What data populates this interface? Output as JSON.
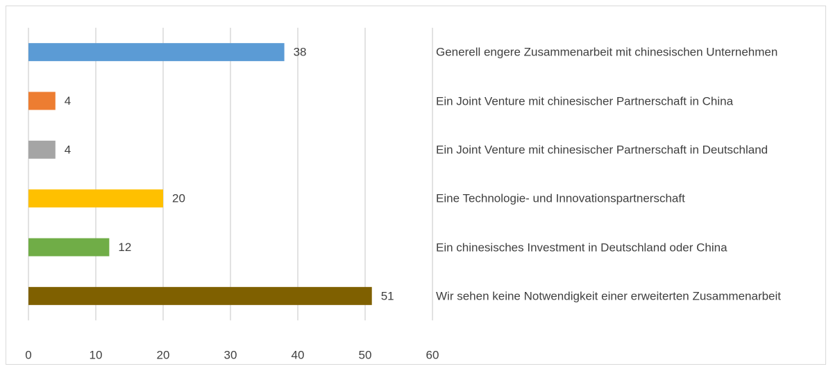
{
  "chart_data": {
    "type": "bar",
    "orientation": "horizontal",
    "categories": [
      "Generell engere Zusammenarbeit mit chinesischen Unternehmen",
      "Ein Joint Venture mit chinesischer Partnerschaft in China",
      "Ein Joint Venture mit chinesischer Partnerschaft in Deutschland",
      "Eine Technologie- und Innovationspartnerschaft",
      "Ein chinesisches Investment in Deutschland oder China",
      "Wir sehen keine Notwendigkeit einer erweiterten Zusammenarbeit"
    ],
    "values": [
      38,
      4,
      4,
      20,
      12,
      51
    ],
    "colors": [
      "#5b9bd5",
      "#ed7d31",
      "#a5a5a5",
      "#ffc000",
      "#70ad47",
      "#7f6000"
    ],
    "xlim": [
      0,
      60
    ],
    "xticks": [
      0,
      10,
      20,
      30,
      40,
      50,
      60
    ],
    "grid": true
  }
}
